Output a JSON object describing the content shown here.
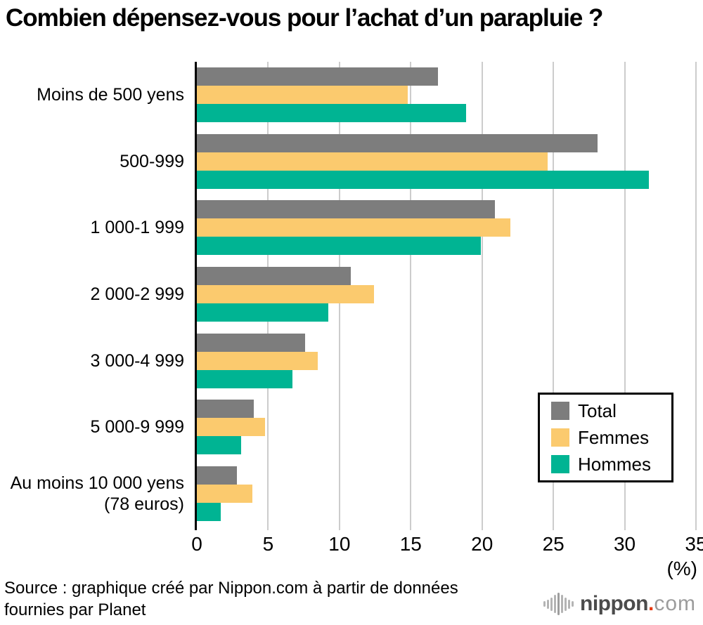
{
  "title": "Combien dépensez-vous pour l’achat d’un parapluie ?",
  "chart_data": {
    "type": "bar",
    "orientation": "horizontal",
    "title": "Combien dépensez-vous pour l’achat d’un parapluie ?",
    "categories": [
      "Moins de 500 yens",
      "500-999",
      "1 000-1 999",
      "2 000-2 999",
      "3 000-4 999",
      "5 000-9 999",
      "Au moins 10 000 yens\n(78 euros)"
    ],
    "series": [
      {
        "name": "Total",
        "color": "#7d7d7d",
        "values": [
          16.9,
          28.1,
          20.9,
          10.8,
          7.6,
          4.0,
          2.8
        ]
      },
      {
        "name": "Femmes",
        "color": "#fbca6e",
        "values": [
          14.8,
          24.6,
          22.0,
          12.4,
          8.5,
          4.8,
          3.9
        ]
      },
      {
        "name": "Hommes",
        "color": "#00b493",
        "values": [
          18.9,
          31.7,
          19.9,
          9.2,
          6.7,
          3.1,
          1.7
        ]
      }
    ],
    "xlim": [
      0,
      35
    ],
    "xticks": [
      0,
      5,
      10,
      15,
      20,
      25,
      30,
      35
    ],
    "unit_label": "(%)",
    "grid": true,
    "gridline_color": "#cccccc",
    "axis_color": "#000000",
    "legend_position": "middle-right"
  },
  "source": {
    "line1": "Source : graphique créé par Nippon.com à partir de données",
    "line2": "fournies par Planet"
  },
  "logo": {
    "nippon": "nippon",
    "dot": ".",
    "com": "com"
  }
}
